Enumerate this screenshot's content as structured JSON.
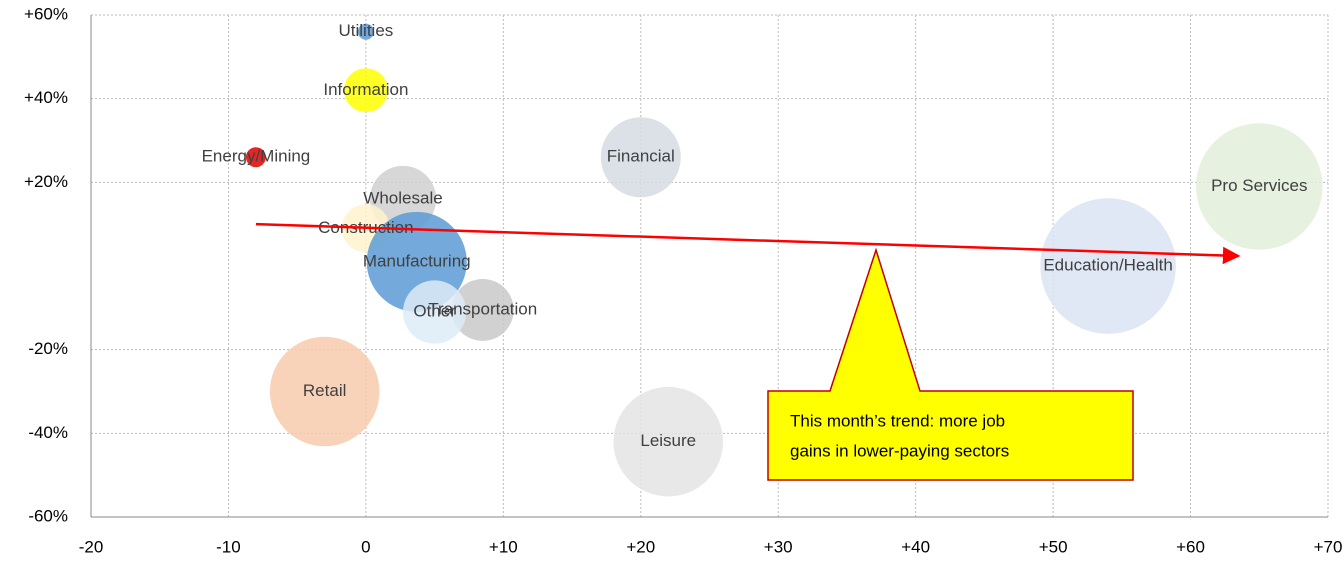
{
  "chart_data": {
    "type": "bubble",
    "categories": [
      "Utilities",
      "Information",
      "Energy/Mining",
      "Financial",
      "Pro Services",
      "Wholesale",
      "Construction",
      "Manufacturing",
      "Education/Health",
      "Transportation",
      "Other",
      "Retail",
      "Leisure"
    ],
    "x": [
      0,
      0,
      -8,
      20,
      65,
      2.7,
      0,
      3.7,
      54,
      8.5,
      5,
      -3,
      22
    ],
    "values": [
      56,
      42,
      26,
      26,
      19,
      16,
      9,
      1,
      0,
      -10.5,
      -11,
      -30,
      -42
    ],
    "sizes": [
      0.64,
      4.8,
      1,
      16,
      40,
      11,
      5.8,
      25,
      46,
      9.6,
      10,
      30,
      30
    ],
    "colors": [
      "#5b9bd5",
      "#ffff00",
      "#e00000",
      "#d6dce4",
      "#e2efda",
      "#d0d0d0",
      "#fff2cc",
      "#5b9bd5",
      "#dae3f3",
      "#c9c9c9",
      "#ddebf7",
      "#f8cbad",
      "#e4e4e4"
    ],
    "xlim": [
      -20,
      70
    ],
    "xticks": [
      -20,
      -10,
      0,
      {
        "value": 10,
        "label": "+10"
      },
      {
        "value": 20,
        "label": "+20"
      },
      {
        "value": 30,
        "label": "+30"
      },
      {
        "value": 40,
        "label": "+40"
      },
      {
        "value": 50,
        "label": "+50"
      },
      {
        "value": 60,
        "label": "+60"
      },
      {
        "value": 70,
        "label": "+70"
      }
    ],
    "ylim": [
      -60,
      60
    ],
    "yticks": [
      {
        "value": 60,
        "label": "+60%"
      },
      {
        "value": 40,
        "label": "+40%"
      },
      {
        "value": 20,
        "label": "+20%"
      },
      {
        "value": -20,
        "label": "-20%"
      },
      {
        "value": -40,
        "label": "-40%"
      },
      {
        "value": -60,
        "label": "-60%"
      }
    ],
    "grid": true,
    "trend": {
      "x": [
        -8,
        63.5
      ],
      "y": [
        10,
        2.4
      ],
      "color": "#ff0000"
    },
    "annotation": [
      "This month’s trend: more job",
      "gains in lower-paying sectors"
    ]
  }
}
